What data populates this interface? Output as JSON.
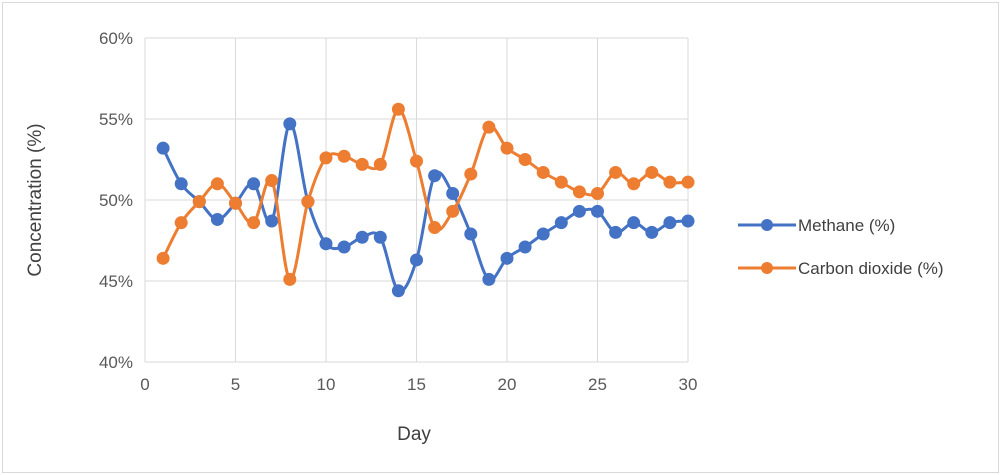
{
  "chart_data": {
    "type": "line",
    "title": "",
    "xlabel": "Day",
    "ylabel": "Concentration (%)",
    "xlim": [
      0,
      30
    ],
    "ylim": [
      40,
      60
    ],
    "x_ticks": [
      "0",
      "5",
      "10",
      "15",
      "20",
      "25",
      "30"
    ],
    "y_ticks": [
      "40%",
      "45%",
      "50%",
      "55%",
      "60%"
    ],
    "grid": true,
    "legend_position": "right",
    "x": [
      1,
      2,
      3,
      4,
      5,
      6,
      7,
      8,
      9,
      10,
      11,
      12,
      13,
      14,
      15,
      16,
      17,
      18,
      19,
      20,
      21,
      22,
      23,
      24,
      25,
      26,
      27,
      28,
      29,
      30
    ],
    "series": [
      {
        "name": "Methane (%)",
        "color": "#4472C4",
        "values": [
          53.2,
          51.0,
          49.9,
          48.8,
          49.8,
          51.0,
          48.7,
          54.7,
          49.9,
          47.3,
          47.1,
          47.7,
          47.7,
          44.4,
          46.3,
          51.5,
          50.4,
          47.9,
          45.1,
          46.4,
          47.1,
          47.9,
          48.6,
          49.3,
          49.3,
          48.0,
          48.6,
          48.0,
          48.6,
          48.7
        ]
      },
      {
        "name": "Carbon dioxide (%)",
        "color": "#ED7D31",
        "values": [
          46.4,
          48.6,
          49.9,
          51.0,
          49.8,
          48.6,
          51.2,
          45.1,
          49.9,
          52.6,
          52.7,
          52.2,
          52.2,
          55.6,
          52.4,
          48.3,
          49.3,
          51.6,
          54.5,
          53.2,
          52.5,
          51.7,
          51.1,
          50.5,
          50.4,
          51.7,
          51.0,
          51.7,
          51.1,
          51.1
        ]
      }
    ]
  }
}
